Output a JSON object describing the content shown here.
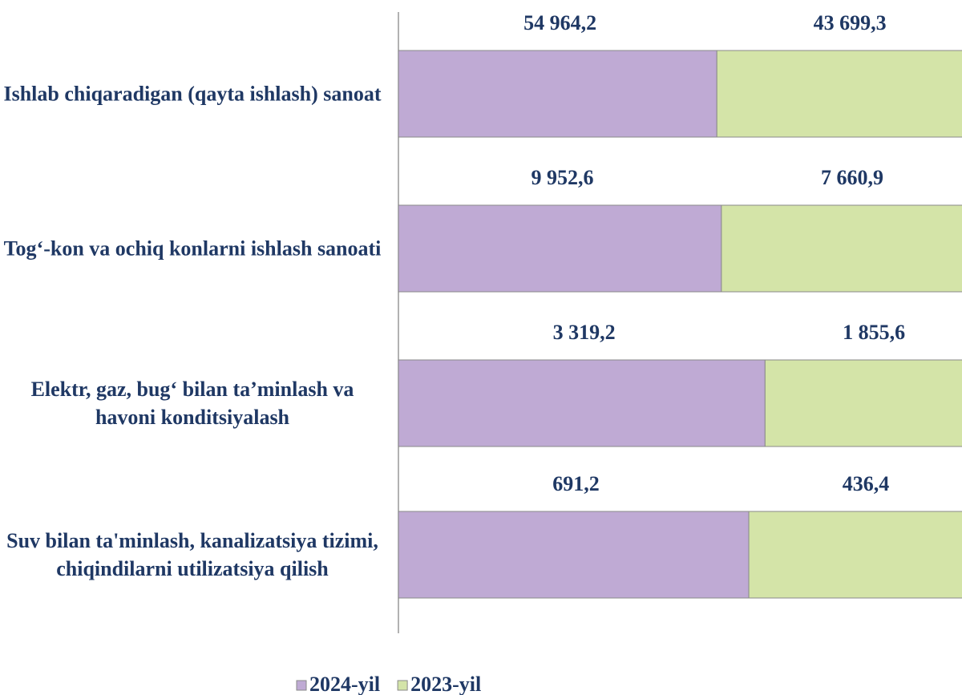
{
  "chart_data": {
    "type": "bar",
    "orientation": "horizontal",
    "stacking": "percent",
    "categories": [
      "Ishlab chiqaradigan (qayta ishlash) sanoat",
      "Tog‘-kon va ochiq konlarni ishlash sanoati",
      "Elektr, gaz, bug‘ bilan ta’minlash va havoni konditsiyalash",
      "Suv bilan ta'minlash, kanalizatsiya tizimi, chiqindilarni utilizatsiya qilish"
    ],
    "series": [
      {
        "name": "2024-yil",
        "color": "#bfaad4",
        "values": [
          54964.2,
          9952.6,
          3319.2,
          691.2
        ],
        "value_labels": [
          "54 964,2",
          "9 952,6",
          "3 319,2",
          "691,2"
        ]
      },
      {
        "name": "2023-yil",
        "color": "#d4e4a8",
        "values": [
          43699.3,
          7660.9,
          1855.6,
          436.4
        ],
        "value_labels": [
          "43 699,3",
          "7 660,9",
          "1 855,6",
          "436,4"
        ]
      }
    ],
    "legend": "bottom"
  }
}
